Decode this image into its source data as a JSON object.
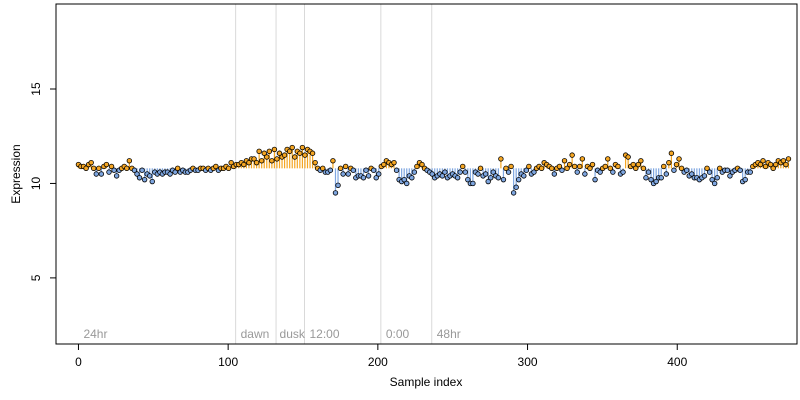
{
  "chart_data": {
    "type": "scatter",
    "xlabel": "Sample index",
    "ylabel": "Expression",
    "xlim": [
      -15,
      480
    ],
    "ylim": [
      1.5,
      19.5
    ],
    "xticks": [
      0,
      100,
      200,
      300,
      400
    ],
    "yticks": [
      5,
      10,
      15
    ],
    "baseline": 10.8,
    "colors": {
      "above": "#f5a623",
      "below": "#7ea6e0",
      "point_stroke": "#000000",
      "vline": "#d9d9d9",
      "annotation": "#999999"
    },
    "vlines": [
      105,
      132,
      151,
      202,
      236
    ],
    "annotations": [
      {
        "x": 2,
        "label": "24hr"
      },
      {
        "x": 107,
        "label": "dawn"
      },
      {
        "x": 133,
        "label": "dusk"
      },
      {
        "x": 153,
        "label": "12:00"
      },
      {
        "x": 204,
        "label": "0:00"
      },
      {
        "x": 238,
        "label": "48hr"
      }
    ],
    "values": [
      11.0,
      10.9,
      10.9,
      10.8,
      11.0,
      11.1,
      10.8,
      10.5,
      10.8,
      10.5,
      10.9,
      11.0,
      10.6,
      10.9,
      10.7,
      10.4,
      10.7,
      10.8,
      10.9,
      10.8,
      11.2,
      10.8,
      10.7,
      10.5,
      10.3,
      10.7,
      10.2,
      10.5,
      10.4,
      10.1,
      10.6,
      10.5,
      10.6,
      10.5,
      10.6,
      10.6,
      10.5,
      10.7,
      10.6,
      10.8,
      10.6,
      10.7,
      10.6,
      10.6,
      10.7,
      10.8,
      10.7,
      10.7,
      10.8,
      10.8,
      10.7,
      10.8,
      10.7,
      10.8,
      10.9,
      10.7,
      10.8,
      10.8,
      10.9,
      10.8,
      11.1,
      10.9,
      11.0,
      11.0,
      11.1,
      11.0,
      11.2,
      11.1,
      11.3,
      11.3,
      11.1,
      11.7,
      11.2,
      11.6,
      11.4,
      11.7,
      11.2,
      11.8,
      11.3,
      11.6,
      11.4,
      11.5,
      11.8,
      11.7,
      11.9,
      11.4,
      11.7,
      11.6,
      11.9,
      11.5,
      11.8,
      11.7,
      11.6,
      11.1,
      10.8,
      10.7,
      10.8,
      10.6,
      10.6,
      10.7,
      11.2,
      9.5,
      9.9,
      10.8,
      10.5,
      10.9,
      10.5,
      10.8,
      10.7,
      10.3,
      10.4,
      10.4,
      10.3,
      10.7,
      10.4,
      10.8,
      10.7,
      10.3,
      10.5,
      10.9,
      11.0,
      11.2,
      11.1,
      11.0,
      11.1,
      10.7,
      10.2,
      10.1,
      10.2,
      10.0,
      10.4,
      10.3,
      10.6,
      10.9,
      11.1,
      11.0,
      10.8,
      10.7,
      10.6,
      10.5,
      10.3,
      10.4,
      10.5,
      10.4,
      10.6,
      10.3,
      10.4,
      10.5,
      10.4,
      10.3,
      10.6,
      10.9,
      10.6,
      10.2,
      10.0,
      10.0,
      10.6,
      10.5,
      10.8,
      10.4,
      10.5,
      10.1,
      10.3,
      10.6,
      10.4,
      10.3,
      11.3,
      10.2,
      10.8,
      10.6,
      10.9,
      9.5,
      9.8,
      10.2,
      10.5,
      10.4,
      10.7,
      10.9,
      10.5,
      10.6,
      10.8,
      10.9,
      10.8,
      11.1,
      11.0,
      10.9,
      10.8,
      10.5,
      10.8,
      10.9,
      10.7,
      11.2,
      10.8,
      11.0,
      11.5,
      10.9,
      10.6,
      10.9,
      11.3,
      10.5,
      10.9,
      10.8,
      11.0,
      10.2,
      10.7,
      10.6,
      10.8,
      10.9,
      11.3,
      10.8,
      10.6,
      11.0,
      10.9,
      10.5,
      10.6,
      11.5,
      11.4,
      10.9,
      11.0,
      10.8,
      11.0,
      11.2,
      10.8,
      10.3,
      10.6,
      10.2,
      10.0,
      10.1,
      10.3,
      10.3,
      10.9,
      10.5,
      11.1,
      11.6,
      10.7,
      11.0,
      11.3,
      10.8,
      10.6,
      10.7,
      10.4,
      10.5,
      10.3,
      10.3,
      10.2,
      10.3,
      10.4,
      10.8,
      10.6,
      10.2,
      10.0,
      10.3,
      10.8,
      10.6,
      10.7,
      10.7,
      10.4,
      10.6,
      10.7,
      10.8,
      10.7,
      10.1,
      10.2,
      10.6,
      10.6,
      10.9,
      11.0,
      11.1,
      11.0,
      11.2,
      10.9,
      11.1,
      11.0,
      10.8,
      11.0,
      11.2,
      11.1,
      11.2,
      11.0,
      11.3
    ]
  }
}
